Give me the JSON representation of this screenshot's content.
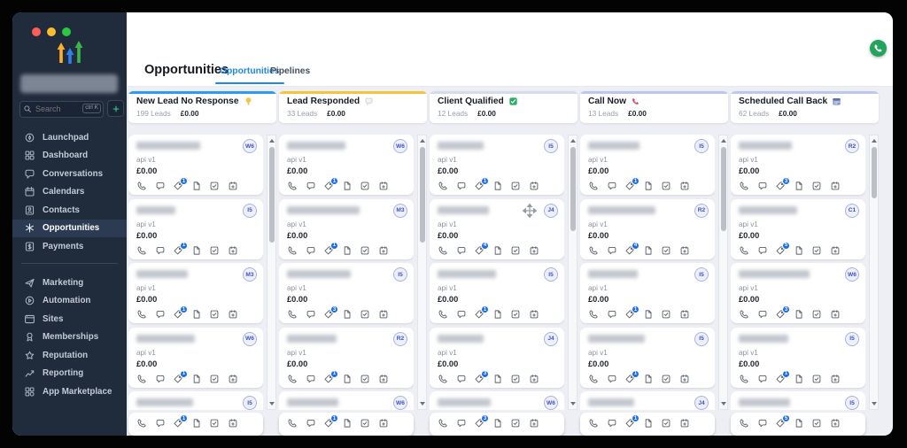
{
  "window": {
    "traffic_lights": [
      "#ff5f57",
      "#febc2e",
      "#28c840"
    ],
    "logo_colors": {
      "yellow": "#FFAF2A",
      "blue": "#2F80ED",
      "green": "#3BB54A"
    }
  },
  "sidebar": {
    "search": {
      "placeholder": "Search",
      "shortcut": "ctrl K"
    },
    "items": [
      {
        "label": "Launchpad",
        "icon": "launchpad-icon",
        "active": false
      },
      {
        "label": "Dashboard",
        "icon": "dashboard-icon",
        "active": false
      },
      {
        "label": "Conversations",
        "icon": "conversations-icon",
        "active": false
      },
      {
        "label": "Calendars",
        "icon": "calendars-icon",
        "active": false
      },
      {
        "label": "Contacts",
        "icon": "contacts-icon",
        "active": false
      },
      {
        "label": "Opportunities",
        "icon": "opportunities-icon",
        "active": true
      },
      {
        "label": "Payments",
        "icon": "payments-icon",
        "active": false
      }
    ],
    "items_secondary": [
      {
        "label": "Marketing",
        "icon": "marketing-icon"
      },
      {
        "label": "Automation",
        "icon": "automation-icon"
      },
      {
        "label": "Sites",
        "icon": "sites-icon"
      },
      {
        "label": "Memberships",
        "icon": "memberships-icon"
      },
      {
        "label": "Reputation",
        "icon": "reputation-icon"
      },
      {
        "label": "Reporting",
        "icon": "reporting-icon"
      },
      {
        "label": "App Marketplace",
        "icon": "app-marketplace-icon"
      }
    ]
  },
  "header": {
    "title": "Opportunities",
    "tabs": [
      {
        "label": "Opportunities",
        "active": true
      },
      {
        "label": "Pipelines",
        "active": false
      }
    ]
  },
  "widgets": {
    "call_button_color": "#23a45c"
  },
  "board": {
    "columns": [
      {
        "title": "New Lead No Response",
        "title_icon": "bulb-icon",
        "accent": "#2e9bf0",
        "leads": "199 Leads",
        "amount": "£0.00",
        "footer_tags": "1",
        "scroll_thumb": 108,
        "cards": [
          {
            "badge": "W6",
            "subtitle": "api v1",
            "amount": "£0.00",
            "tags": "1",
            "name_w": 72
          },
          {
            "badge": "I5",
            "subtitle": "api v1",
            "amount": "£0.00",
            "tags": "1",
            "name_w": 44
          },
          {
            "badge": "M3",
            "subtitle": "api v1",
            "amount": "£0.00",
            "tags": "1",
            "name_w": 58
          },
          {
            "badge": "W6",
            "subtitle": "api v1",
            "amount": "£0.00",
            "tags": "1",
            "name_w": 66
          }
        ],
        "partial": {
          "badge": "I5",
          "name_w": 64
        }
      },
      {
        "title": "Lead Responded",
        "title_icon": "speech-icon",
        "accent": "#f3c43c",
        "leads": "33 Leads",
        "amount": "£0.00",
        "footer_tags": "1",
        "scroll_thumb": 108,
        "cards": [
          {
            "badge": "W6",
            "subtitle": "api v1",
            "amount": "£0.00",
            "tags": "1",
            "name_w": 66
          },
          {
            "badge": "M3",
            "subtitle": "api v1",
            "amount": "£0.00",
            "tags": "1",
            "name_w": 82
          },
          {
            "badge": "I5",
            "subtitle": "api v1",
            "amount": "£0.00",
            "tags": "3",
            "name_w": 72
          },
          {
            "badge": "R2",
            "subtitle": "api v1",
            "amount": "£0.00",
            "tags": "1",
            "name_w": 56
          }
        ],
        "partial": {
          "badge": "W6",
          "name_w": 58
        }
      },
      {
        "title": "Client Qualified",
        "title_icon": "check-icon",
        "accent": "#d6dbe9",
        "leads": "12 Leads",
        "amount": "£0.00",
        "footer_tags": "3",
        "scroll_thumb": 95,
        "cards": [
          {
            "badge": "I5",
            "subtitle": "api v1",
            "amount": "£0.00",
            "tags": "1",
            "name_w": 52
          },
          {
            "badge": "J4",
            "subtitle": "api v1",
            "amount": "£0.00",
            "tags": "4",
            "name_w": 58
          },
          {
            "badge": "I5",
            "subtitle": "api v1",
            "amount": "£0.00",
            "tags": "1",
            "name_w": 66
          },
          {
            "badge": "J4",
            "subtitle": "api v1",
            "amount": "£0.00",
            "tags": "3",
            "name_w": 52
          }
        ],
        "partial": {
          "badge": "W6",
          "name_w": 60
        }
      },
      {
        "title": "Call Now",
        "title_icon": "redphone-icon",
        "accent": "#bcc8ee",
        "leads": "13 Leads",
        "amount": "£0.00",
        "footer_tags": "1",
        "scroll_thumb": 95,
        "cards": [
          {
            "badge": "I5",
            "subtitle": "api v1",
            "amount": "£0.00",
            "tags": "1",
            "name_w": 58
          },
          {
            "badge": "R2",
            "subtitle": "api v1",
            "amount": "£0.00",
            "tags": "4",
            "name_w": 76
          },
          {
            "badge": "I5",
            "subtitle": "api v1",
            "amount": "£0.00",
            "tags": "1",
            "name_w": 56
          },
          {
            "badge": "I5",
            "subtitle": "api v1",
            "amount": "£0.00",
            "tags": "1",
            "name_w": 64
          }
        ],
        "partial": {
          "badge": "J4",
          "name_w": 52
        }
      },
      {
        "title": "Scheduled Call Back",
        "title_icon": "calendar-icon",
        "accent": "#bcc8ee",
        "leads": "62 Leads",
        "amount": "£0.00",
        "footer_tags": "5",
        "scroll_thumb": 58,
        "cards": [
          {
            "badge": "R2",
            "subtitle": "api v1",
            "amount": "£0.00",
            "tags": "3",
            "name_w": 60
          },
          {
            "badge": "C1",
            "subtitle": "api v1",
            "amount": "£0.00",
            "tags": "5",
            "name_w": 66
          },
          {
            "badge": "W6",
            "subtitle": "api v1",
            "amount": "£0.00",
            "tags": "3",
            "name_w": 80
          },
          {
            "badge": "I5",
            "subtitle": "api v1",
            "amount": "£0.00",
            "tags": "1",
            "name_w": 56
          }
        ],
        "partial": {
          "badge": "I5",
          "name_w": 58
        }
      }
    ]
  }
}
